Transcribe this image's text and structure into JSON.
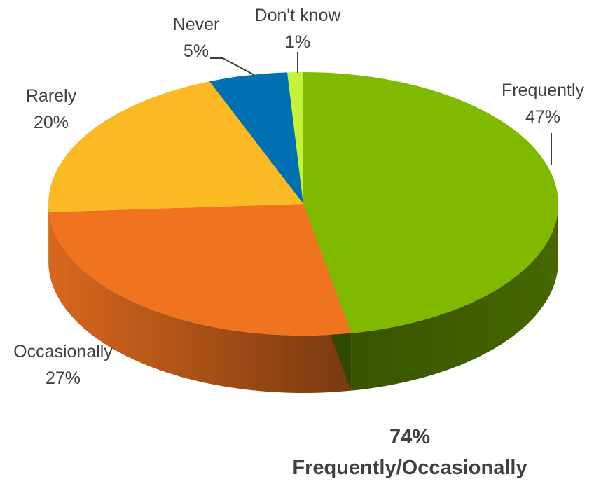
{
  "chart_data": {
    "type": "pie",
    "style": "3d",
    "slices": [
      {
        "name": "Frequently",
        "label": "Frequently",
        "value": 47,
        "value_label": "47%",
        "color": "#7FBA00"
      },
      {
        "name": "Occasionally",
        "label": "Occasionally",
        "value": 27,
        "value_label": "27%",
        "color": "#F07320"
      },
      {
        "name": "Rarely",
        "label": "Rarely",
        "value": 20,
        "value_label": "20%",
        "color": "#FBBA23"
      },
      {
        "name": "Never",
        "label": "Never",
        "value": 5,
        "value_label": "5%",
        "color": "#0070B0"
      },
      {
        "name": "Don't know",
        "label": "Don't know",
        "value": 1,
        "value_label": "1%",
        "color": "#C5F33A"
      }
    ]
  },
  "summary": {
    "percent": "74%",
    "text": "Frequently/Occasionally"
  }
}
